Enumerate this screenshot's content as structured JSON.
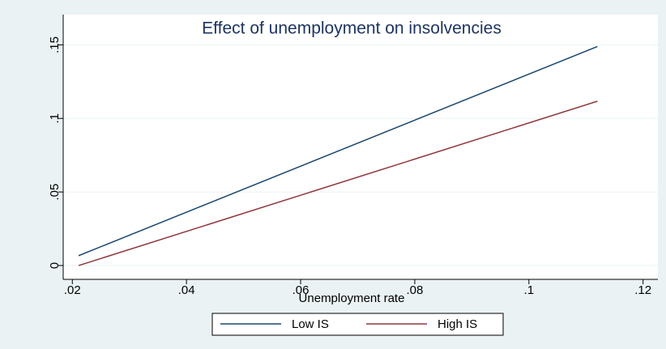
{
  "chart_data": {
    "type": "line",
    "title": "Effect of unemployment on insolvencies",
    "x_label": "Unemployment rate",
    "series": [
      {
        "name": "Low IS",
        "color": "#1a476f",
        "x": [
          0.0211,
          0.112
        ],
        "values": [
          0.0067,
          0.1489
        ]
      },
      {
        "name": "High IS",
        "color": "#90353b",
        "x": [
          0.0211,
          0.112
        ],
        "values": [
          0.0,
          0.1117
        ]
      }
    ],
    "xlim": [
      0.0184,
      0.1226
    ],
    "xticks": [
      {
        "value": 0.02,
        "label": ".02"
      },
      {
        "value": 0.04,
        "label": ".04"
      },
      {
        "value": 0.06,
        "label": ".06"
      },
      {
        "value": 0.08,
        "label": ".08"
      },
      {
        "value": 0.1,
        "label": ".1"
      },
      {
        "value": 0.12,
        "label": ".12"
      }
    ],
    "ylim": [
      -0.0094,
      0.1706
    ],
    "yticks": [
      0,
      {
        "value": 0.05,
        "label": ".05"
      },
      {
        "value": 0.1,
        "label": ".1"
      },
      {
        "value": 0.15,
        "label": ".15"
      }
    ],
    "grid": true,
    "legend": "bottom"
  }
}
